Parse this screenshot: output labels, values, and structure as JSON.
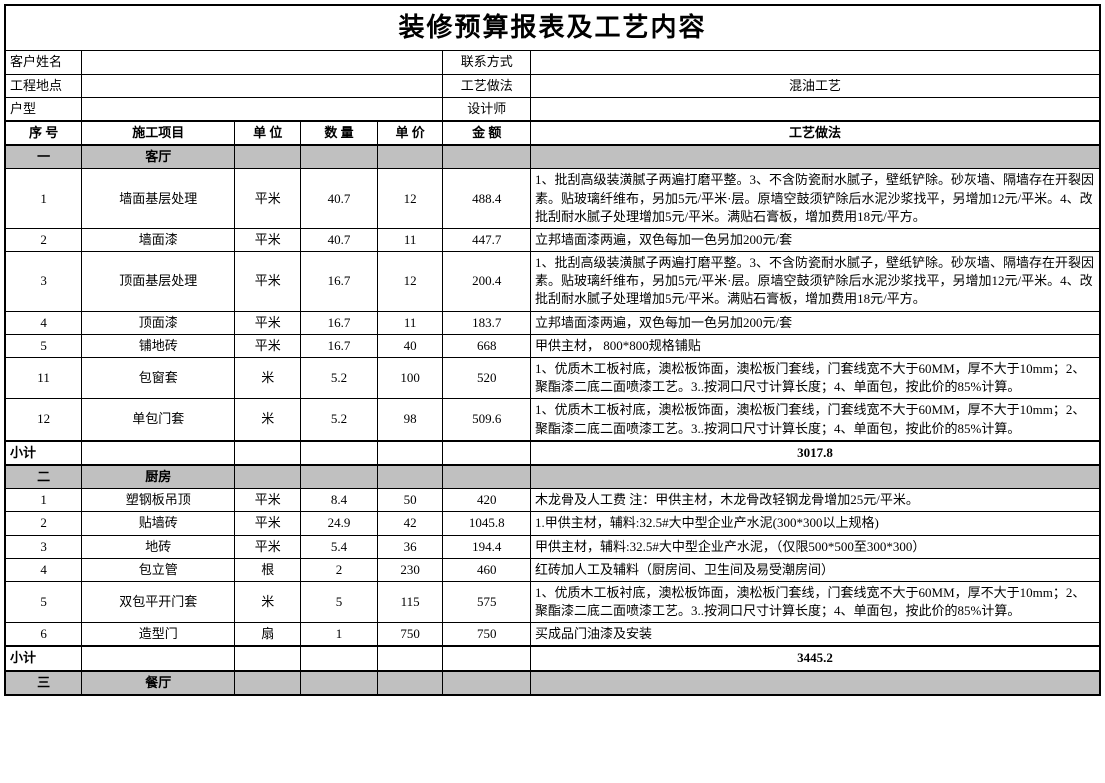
{
  "title": "装修预算报表及工艺内容",
  "hdr": {
    "custName": "客户姓名",
    "custVal": "",
    "contact": "联系方式",
    "contactVal": "",
    "projLoc": "工程地点",
    "projLocVal": "",
    "craft": "工艺做法",
    "craftVal": "混油工艺",
    "house": "户型",
    "houseVal": "",
    "designer": "设计师",
    "designerVal": ""
  },
  "cols": {
    "seq": "序 号",
    "item": "施工项目",
    "unit": "单 位",
    "qty": "数 量",
    "price": "单 价",
    "amount": "金 额",
    "method": "工艺做法"
  },
  "subtotal_label": "小计",
  "sections": [
    {
      "no": "一",
      "name": "客厅",
      "rows": [
        {
          "seq": "1",
          "item": "墙面基层处理",
          "unit": "平米",
          "qty": "40.7",
          "price": "12",
          "amount": "488.4",
          "method": "1、批刮高级装潢腻子两遍打磨平整。3、不含防瓷耐水腻子，壁纸铲除。砂灰墙、隔墙存在开裂因素。贴玻璃纤维布，另加5元/平米·层。原墙空鼓须铲除后水泥沙浆找平，另增加12元/平米。4、改批刮耐水腻子处理增加5元/平米。满贴石膏板，增加费用18元/平方。"
        },
        {
          "seq": "2",
          "item": "墙面漆",
          "unit": "平米",
          "qty": "40.7",
          "price": "11",
          "amount": "447.7",
          "method": "立邦墙面漆两遍，双色每加一色另加200元/套"
        },
        {
          "seq": "3",
          "item": "顶面基层处理",
          "unit": "平米",
          "qty": "16.7",
          "price": "12",
          "amount": "200.4",
          "method": "1、批刮高级装潢腻子两遍打磨平整。3、不含防瓷耐水腻子，壁纸铲除。砂灰墙、隔墙存在开裂因素。贴玻璃纤维布，另加5元/平米·层。原墙空鼓须铲除后水泥沙浆找平，另增加12元/平米。4、改批刮耐水腻子处理增加5元/平米。满贴石膏板，增加费用18元/平方。"
        },
        {
          "seq": "4",
          "item": "顶面漆",
          "unit": "平米",
          "qty": "16.7",
          "price": "11",
          "amount": "183.7",
          "method": "立邦墙面漆两遍，双色每加一色另加200元/套"
        },
        {
          "seq": "5",
          "item": "铺地砖",
          "unit": "平米",
          "qty": "16.7",
          "price": "40",
          "amount": "668",
          "method": "甲供主材，  800*800规格铺贴"
        },
        {
          "seq": "11",
          "item": "包窗套",
          "unit": "米",
          "qty": "5.2",
          "price": "100",
          "amount": "520",
          "method": "1、优质木工板衬底，澳松板饰面，澳松板门套线，门套线宽不大于60MM，厚不大于10mm；2、聚酯漆二底二面喷漆工艺。3..按洞口尺寸计算长度；4、单面包，按此价的85%计算。"
        },
        {
          "seq": "12",
          "item": "单包门套",
          "unit": "米",
          "qty": "5.2",
          "price": "98",
          "amount": "509.6",
          "method": "1、优质木工板衬底，澳松板饰面，澳松板门套线，门套线宽不大于60MM，厚不大于10mm；2、聚酯漆二底二面喷漆工艺。3..按洞口尺寸计算长度；4、单面包，按此价的85%计算。"
        }
      ],
      "subtotal": "3017.8"
    },
    {
      "no": "二",
      "name": "厨房",
      "rows": [
        {
          "seq": "1",
          "item": "塑钢板吊顶",
          "unit": "平米",
          "qty": "8.4",
          "price": "50",
          "amount": "420",
          "method": "木龙骨及人工费              注：甲供主材，木龙骨改轻钢龙骨增加25元/平米。"
        },
        {
          "seq": "2",
          "item": "贴墙砖",
          "unit": "平米",
          "qty": "24.9",
          "price": "42",
          "amount": "1045.8",
          "method": "1.甲供主材，辅料:32.5#大中型企业产水泥(300*300以上规格)"
        },
        {
          "seq": "3",
          "item": "地砖",
          "unit": "平米",
          "qty": "5.4",
          "price": "36",
          "amount": "194.4",
          "method": "甲供主材，辅料:32.5#大中型企业产水泥，（仅限500*500至300*300）"
        },
        {
          "seq": "4",
          "item": "包立管",
          "unit": "根",
          "qty": "2",
          "price": "230",
          "amount": "460",
          "method": "红砖加人工及辅料（厨房间、卫生间及易受潮房间）"
        },
        {
          "seq": "5",
          "item": "双包平开门套",
          "unit": "米",
          "qty": "5",
          "price": "115",
          "amount": "575",
          "method": "1、优质木工板衬底，澳松板饰面，澳松板门套线，门套线宽不大于60MM，厚不大于10mm；2、聚酯漆二底二面喷漆工艺。3..按洞口尺寸计算长度；4、单面包，按此价的85%计算。"
        },
        {
          "seq": "6",
          "item": "造型门",
          "unit": "扇",
          "qty": "1",
          "price": "750",
          "amount": "750",
          "method": "买成品门油漆及安装"
        }
      ],
      "subtotal": "3445.2"
    },
    {
      "no": "三",
      "name": "餐厅",
      "rows": [],
      "subtotal": null
    }
  ]
}
